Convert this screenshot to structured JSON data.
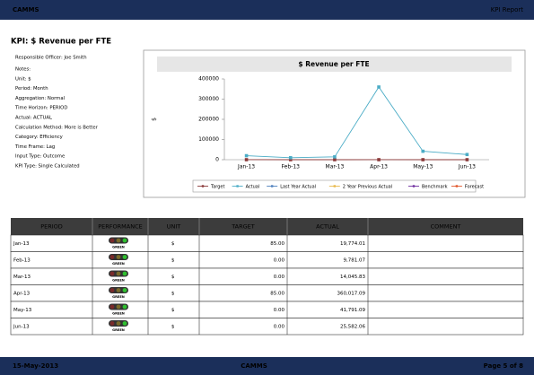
{
  "header": {
    "left": "CAMMS",
    "right": "KPI Report"
  },
  "kpi": {
    "title": "KPI: $ Revenue per FTE",
    "details": [
      "Responsible Officer: Joe Smith",
      "Notes:",
      "Unit: $",
      "Period: Month",
      "Aggregation: Normal",
      "Time Horizon: PERIOD",
      "Actual: ACTUAL",
      "Calculation Method: More is Better",
      "Category: Efficiency",
      "Time Frame: Lag",
      "Input Type: Outcome",
      "KPI Type: Single Calculated"
    ]
  },
  "chart_data": {
    "type": "line",
    "title": "$ Revenue per FTE",
    "ylabel": "$",
    "categories": [
      "Jan-13",
      "Feb-13",
      "Mar-13",
      "Apr-13",
      "May-13",
      "Jun-13"
    ],
    "series": [
      {
        "name": "Target",
        "color": "#8b3a3a",
        "values": [
          85,
          0,
          0,
          85,
          0,
          0
        ]
      },
      {
        "name": "Actual",
        "color": "#4bacc6",
        "values": [
          19774.01,
          9781.07,
          14045.83,
          360017.09,
          41791.09,
          25582.06
        ]
      },
      {
        "name": "Last Year Actual",
        "color": "#4f81bd",
        "values": [
          null,
          null,
          null,
          null,
          null,
          null
        ]
      },
      {
        "name": "2 Year Previous Actual",
        "color": "#e8b84a",
        "values": [
          null,
          null,
          null,
          null,
          null,
          null
        ]
      },
      {
        "name": "Benchmark",
        "color": "#7030a0",
        "values": [
          null,
          null,
          null,
          null,
          null,
          null
        ]
      },
      {
        "name": "Forecast",
        "color": "#e0562a",
        "values": [
          null,
          null,
          null,
          null,
          null,
          null
        ]
      }
    ],
    "ylim": [
      0,
      400000
    ],
    "yticks": [
      0,
      100000,
      200000,
      300000,
      400000
    ],
    "grid": false,
    "legend": "bottom"
  },
  "table": {
    "columns": [
      "PERIOD",
      "PERFORMANCE",
      "UNIT",
      "TARGET",
      "ACTUAL",
      "COMMENT"
    ],
    "rows": [
      [
        "Jan-13",
        "GREEN",
        "$",
        "85.00",
        "19,774.01"
      ],
      [
        "Feb-13",
        "GREEN",
        "$",
        "0.00",
        "9,781.07"
      ],
      [
        "Mar-13",
        "GREEN",
        "$",
        "0.00",
        "14,045.83"
      ],
      [
        "Apr-13",
        "GREEN",
        "$",
        "85.00",
        "360,017.09"
      ],
      [
        "May-13",
        "GREEN",
        "$",
        "0.00",
        "41,791.09"
      ],
      [
        "Jun-13",
        "GREEN",
        "$",
        "0.00",
        "25,582.06"
      ]
    ]
  },
  "footer": {
    "date": "15-May-2013",
    "center": "CAMMS",
    "page": "Page 5 of 8"
  }
}
